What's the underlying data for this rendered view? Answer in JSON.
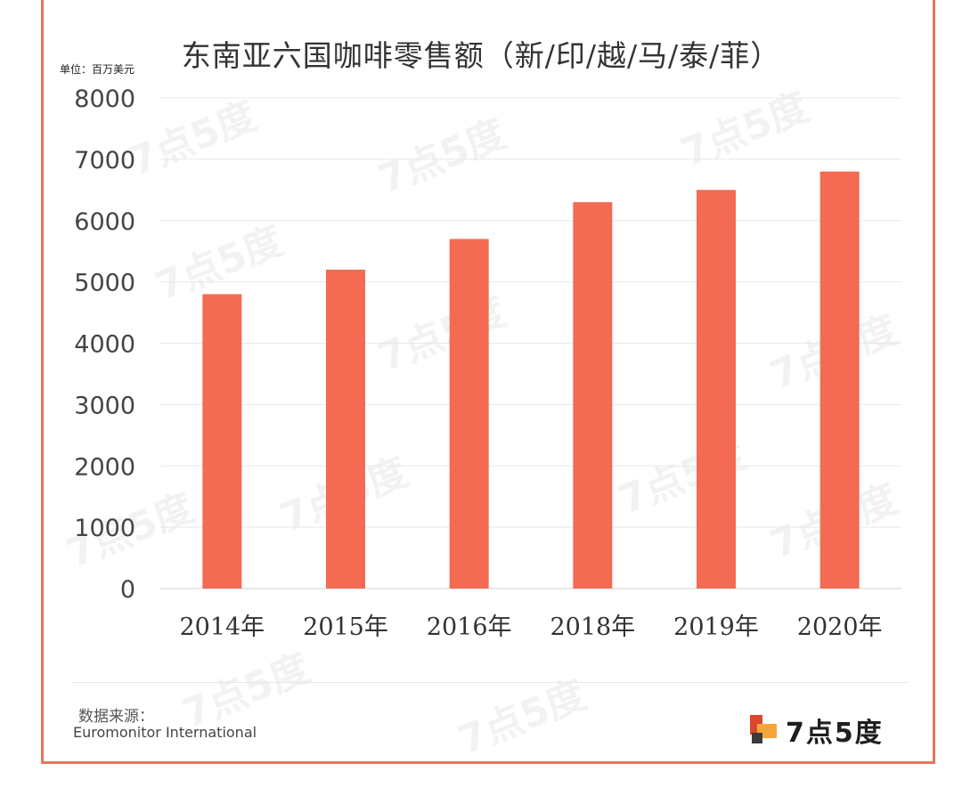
{
  "chart_data": {
    "type": "bar",
    "title": "东南亚六国咖啡零售额（新/印/越/马/泰/菲）",
    "unit_label": "单位：百万美元",
    "categories": [
      "2014年",
      "2015年",
      "2016年",
      "2018年",
      "2019年",
      "2020年"
    ],
    "values": [
      4800,
      5200,
      5700,
      6300,
      6500,
      6800
    ],
    "ylim": [
      0,
      8000
    ],
    "yticks": [
      0,
      1000,
      2000,
      3000,
      4000,
      5000,
      6000,
      7000,
      8000
    ],
    "grid": true,
    "bar_color": "#f26b52"
  },
  "footer": {
    "source_label": "数据来源：",
    "source_value": "Euromonitor International"
  },
  "logo": {
    "text": "7点5度",
    "icon": "brand-logo-icon"
  },
  "watermark": "7点5度"
}
